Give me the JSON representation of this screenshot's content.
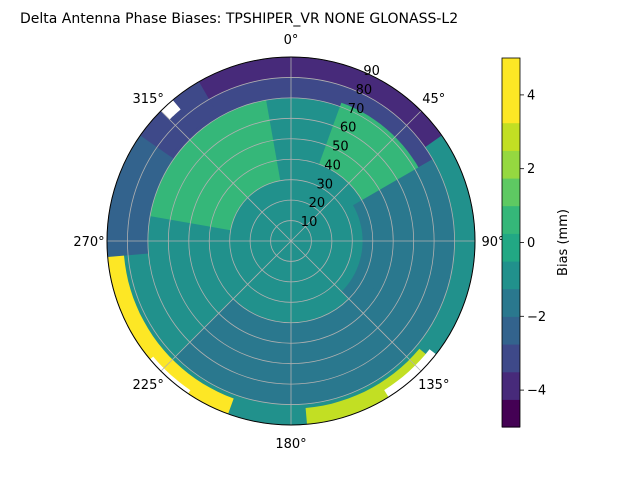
{
  "chart_data": {
    "type": "polar-contour",
    "title": "Delta Antenna Phase Biases: TPSHIPER_VR     NONE GLONASS-L2",
    "azimuth_labels": [
      "0°",
      "45°",
      "90°",
      "135°",
      "180°",
      "225°",
      "270°",
      "315°"
    ],
    "azimuth_ticks_deg": [
      0,
      45,
      90,
      135,
      180,
      225,
      270,
      315
    ],
    "radial_labels": [
      "10",
      "20",
      "30",
      "40",
      "50",
      "60",
      "70",
      "80",
      "90"
    ],
    "radial_ticks": [
      10,
      20,
      30,
      40,
      50,
      60,
      70,
      80,
      90
    ],
    "radial_label_azimuth_deg": 22.5,
    "rlim": [
      0,
      90
    ],
    "grid": true,
    "colorbar": {
      "label": "Bias (mm)",
      "tick_labels": [
        "−4",
        "−2",
        "0",
        "2",
        "4"
      ],
      "ticks": [
        -4,
        -2,
        0,
        2,
        4
      ],
      "range": [
        -5,
        5
      ],
      "levels": [
        -5,
        -4.25,
        -3.5,
        -2.75,
        -2,
        -1.25,
        -0.5,
        0.25,
        1,
        1.75,
        2.5,
        3.25,
        4,
        5
      ],
      "colors": [
        "#440154",
        "#472a7a",
        "#3e4989",
        "#33638d",
        "#2a788e",
        "#21918c",
        "#22a884",
        "#35b779",
        "#5ec962",
        "#95d840",
        "#c2df23",
        "#fde725",
        "#fde725"
      ]
    },
    "regions": [
      {
        "name": "background",
        "level": 0.3,
        "color": "#21918c"
      },
      {
        "name": "north-rim-deep-negative",
        "level": -4.6,
        "color": "#472a7a",
        "az_range": [
          -35,
          55
        ],
        "r_range": [
          75,
          90
        ]
      },
      {
        "name": "north-rim-negative",
        "level": -3.0,
        "color": "#3e4989",
        "az_range": [
          -55,
          60
        ],
        "r_range": [
          70,
          80
        ]
      },
      {
        "name": "northwest-rim-negative",
        "level": -3.5,
        "color": "#3e4989",
        "az_range": [
          -75,
          -30
        ],
        "r_range": [
          72,
          90
        ]
      },
      {
        "name": "west-rim-slightly-negative",
        "level": -1.6,
        "color": "#33638d",
        "az_range": [
          -95,
          -55
        ],
        "r_range": [
          70,
          90
        ]
      },
      {
        "name": "northwest-positive-lobe",
        "level": 1.6,
        "color": "#35b779",
        "az_range": [
          -80,
          -10
        ],
        "r_range": [
          30,
          70
        ]
      },
      {
        "name": "northeast-positive-lobe",
        "level": 1.4,
        "color": "#35b779",
        "az_range": [
          20,
          70
        ],
        "r_range": [
          40,
          72
        ]
      },
      {
        "name": "east-negative-lobe",
        "level": -1.8,
        "color": "#2a788e",
        "az_range": [
          60,
          135
        ],
        "r_range": [
          35,
          80
        ]
      },
      {
        "name": "south-negative-band",
        "level": -1.2,
        "color": "#2a788e",
        "az_range": [
          120,
          225
        ],
        "r_range": [
          40,
          80
        ]
      },
      {
        "name": "southwest-rim-high",
        "level": 4.5,
        "color": "#fde725",
        "az_range": [
          200,
          265
        ],
        "r_range": [
          82,
          90
        ]
      },
      {
        "name": "southeast-rim-high",
        "level": 3.5,
        "color": "#c2df23",
        "az_range": [
          130,
          175
        ],
        "r_range": [
          82,
          90
        ]
      }
    ],
    "blank_regions": [
      {
        "name": "northwest-gap",
        "az_range": [
          -45,
          -40
        ],
        "r_range": [
          84,
          90
        ]
      },
      {
        "name": "southwest-gap",
        "az_range": [
          214,
          230
        ],
        "r_range": [
          88,
          90
        ]
      },
      {
        "name": "southeast-gap",
        "az_range": [
          128,
          148
        ],
        "r_range": [
          86,
          90
        ]
      }
    ]
  }
}
